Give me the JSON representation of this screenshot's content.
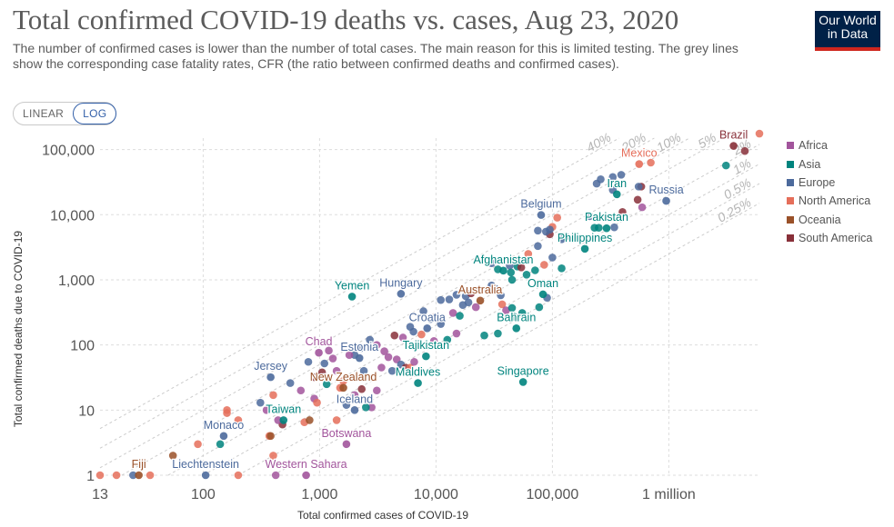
{
  "header": {
    "title": "Total confirmed COVID-19 deaths vs. cases, Aug 23, 2020",
    "subtitle": "The number of confirmed cases is lower than the number of total cases. The main reason for this is limited testing. The grey lines show the corresponding case fatality rates, CFR (the ratio between confirmed deaths and confirmed cases).",
    "logo_line1": "Our World",
    "logo_line2": "in Data"
  },
  "scale_toggle": {
    "linear_label": "LINEAR",
    "log_label": "LOG",
    "selected": "LOG"
  },
  "colors": {
    "Africa": "#a2559c",
    "Asia": "#00847e",
    "Europe": "#4c6a9c",
    "North America": "#e56e5a",
    "Oceania": "#9a5129",
    "South America": "#883039"
  },
  "legend": [
    "Africa",
    "Asia",
    "Europe",
    "North America",
    "Oceania",
    "South America"
  ],
  "chart_data": {
    "type": "scatter",
    "title": "Total confirmed COVID-19 deaths vs. cases, Aug 23, 2020",
    "xlabel": "Total confirmed cases of COVID-19",
    "ylabel": "Total confirmed deaths due to COVID-19",
    "xscale": "log",
    "yscale": "log",
    "xlim": [
      13,
      6000000
    ],
    "ylim": [
      1,
      150000
    ],
    "x_ticks": [
      {
        "value": 13,
        "label": "13"
      },
      {
        "value": 100,
        "label": "100"
      },
      {
        "value": 1000,
        "label": "1,000"
      },
      {
        "value": 10000,
        "label": "10,000"
      },
      {
        "value": 100000,
        "label": "100,000"
      },
      {
        "value": 1000000,
        "label": "1 million"
      }
    ],
    "y_ticks": [
      {
        "value": 1,
        "label": "1"
      },
      {
        "value": 10,
        "label": "10"
      },
      {
        "value": 100,
        "label": "100"
      },
      {
        "value": 1000,
        "label": "1,000"
      },
      {
        "value": 10000,
        "label": "10,000"
      },
      {
        "value": 100000,
        "label": "100,000"
      }
    ],
    "cfr_lines": [
      {
        "rate": 0.4,
        "label": "40%"
      },
      {
        "rate": 0.2,
        "label": "20%"
      },
      {
        "rate": 0.1,
        "label": "10%"
      },
      {
        "rate": 0.05,
        "label": "5%"
      },
      {
        "rate": 0.02,
        "label": "2%"
      },
      {
        "rate": 0.01,
        "label": "1%"
      },
      {
        "rate": 0.005,
        "label": "0.5%"
      },
      {
        "rate": 0.0025,
        "label": "0.25%"
      }
    ],
    "legend_position": "right",
    "labeled_points": [
      {
        "name": "Brazil",
        "x": 3600000,
        "y": 114000,
        "region": "South America"
      },
      {
        "name": "Mexico",
        "x": 556000,
        "y": 60000,
        "region": "North America"
      },
      {
        "name": "Iran",
        "x": 358000,
        "y": 20600,
        "region": "Asia"
      },
      {
        "name": "Russia",
        "x": 950000,
        "y": 16300,
        "region": "Europe"
      },
      {
        "name": "Belgium",
        "x": 80000,
        "y": 9900,
        "region": "Europe"
      },
      {
        "name": "Pakistan",
        "x": 292000,
        "y": 6200,
        "region": "Asia"
      },
      {
        "name": "Philippines",
        "x": 190000,
        "y": 3000,
        "region": "Asia"
      },
      {
        "name": "Afghanistan",
        "x": 37900,
        "y": 1385,
        "region": "Asia"
      },
      {
        "name": "Yemen",
        "x": 1900,
        "y": 552,
        "region": "Asia"
      },
      {
        "name": "Hungary",
        "x": 5000,
        "y": 610,
        "region": "Europe"
      },
      {
        "name": "Australia",
        "x": 24000,
        "y": 480,
        "region": "Oceania"
      },
      {
        "name": "Oman",
        "x": 83000,
        "y": 600,
        "region": "Asia"
      },
      {
        "name": "Croatia",
        "x": 8400,
        "y": 180,
        "region": "Europe"
      },
      {
        "name": "Bahrain",
        "x": 49000,
        "y": 180,
        "region": "Asia"
      },
      {
        "name": "Chad",
        "x": 985,
        "y": 76,
        "region": "Africa"
      },
      {
        "name": "Estonia",
        "x": 2200,
        "y": 63,
        "region": "Europe"
      },
      {
        "name": "Tajikistan",
        "x": 8200,
        "y": 67,
        "region": "Asia"
      },
      {
        "name": "Jersey",
        "x": 380,
        "y": 32,
        "region": "Europe"
      },
      {
        "name": "New Zealand",
        "x": 1600,
        "y": 22,
        "region": "Oceania"
      },
      {
        "name": "Maldives",
        "x": 7000,
        "y": 26,
        "region": "Asia"
      },
      {
        "name": "Singapore",
        "x": 56000,
        "y": 27,
        "region": "Asia"
      },
      {
        "name": "Iceland",
        "x": 2000,
        "y": 10,
        "region": "Europe"
      },
      {
        "name": "Taiwan",
        "x": 490,
        "y": 7,
        "region": "Asia"
      },
      {
        "name": "Monaco",
        "x": 150,
        "y": 4,
        "region": "Europe"
      },
      {
        "name": "Botswana",
        "x": 1700,
        "y": 3,
        "region": "Africa"
      },
      {
        "name": "Liechtenstein",
        "x": 105,
        "y": 1,
        "region": "Europe"
      },
      {
        "name": "Western Sahara",
        "x": 766,
        "y": 1,
        "region": "Africa"
      },
      {
        "name": "Fiji",
        "x": 28,
        "y": 1,
        "region": "Oceania"
      }
    ],
    "points": [
      {
        "x": 6000000,
        "y": 176000,
        "region": "North America"
      },
      {
        "x": 4500000,
        "y": 95000,
        "region": "South America"
      },
      {
        "x": 3100000,
        "y": 57000,
        "region": "Asia"
      },
      {
        "x": 700000,
        "y": 63000,
        "region": "North America"
      },
      {
        "x": 580000,
        "y": 27000,
        "region": "South America"
      },
      {
        "x": 330000,
        "y": 38000,
        "region": "Europe"
      },
      {
        "x": 330000,
        "y": 24000,
        "region": "Europe"
      },
      {
        "x": 260000,
        "y": 35000,
        "region": "Europe"
      },
      {
        "x": 240000,
        "y": 30000,
        "region": "Europe"
      },
      {
        "x": 390000,
        "y": 41000,
        "region": "Europe"
      },
      {
        "x": 550000,
        "y": 27000,
        "region": "Europe"
      },
      {
        "x": 540000,
        "y": 17000,
        "region": "South America"
      },
      {
        "x": 590000,
        "y": 13000,
        "region": "Africa"
      },
      {
        "x": 400000,
        "y": 11000,
        "region": "South America"
      },
      {
        "x": 210000,
        "y": 9500,
        "region": "Europe"
      },
      {
        "x": 110000,
        "y": 9000,
        "region": "North America"
      },
      {
        "x": 100000,
        "y": 6500,
        "region": "North America"
      },
      {
        "x": 95000,
        "y": 5000,
        "region": "South America"
      },
      {
        "x": 75000,
        "y": 5700,
        "region": "Europe"
      },
      {
        "x": 88000,
        "y": 5500,
        "region": "Europe"
      },
      {
        "x": 95000,
        "y": 5900,
        "region": "Europe"
      },
      {
        "x": 230000,
        "y": 6300,
        "region": "Asia"
      },
      {
        "x": 250000,
        "y": 6300,
        "region": "Asia"
      },
      {
        "x": 120000,
        "y": 4200,
        "region": "Europe"
      },
      {
        "x": 340000,
        "y": 6400,
        "region": "Europe"
      },
      {
        "x": 130000,
        "y": 4600,
        "region": "Asia"
      },
      {
        "x": 75000,
        "y": 3300,
        "region": "Europe"
      },
      {
        "x": 62000,
        "y": 2500,
        "region": "North America"
      },
      {
        "x": 53000,
        "y": 2000,
        "region": "South America"
      },
      {
        "x": 50000,
        "y": 1600,
        "region": "Asia"
      },
      {
        "x": 85000,
        "y": 1700,
        "region": "North America"
      },
      {
        "x": 30000,
        "y": 1800,
        "region": "Europe"
      },
      {
        "x": 34000,
        "y": 1450,
        "region": "Asia"
      },
      {
        "x": 43000,
        "y": 1650,
        "region": "Europe"
      },
      {
        "x": 44000,
        "y": 1300,
        "region": "Asia"
      },
      {
        "x": 54000,
        "y": 1550,
        "region": "South America"
      },
      {
        "x": 60000,
        "y": 1200,
        "region": "Asia"
      },
      {
        "x": 120000,
        "y": 1500,
        "region": "Asia"
      },
      {
        "x": 71000,
        "y": 1400,
        "region": "Asia"
      },
      {
        "x": 100000,
        "y": 2200,
        "region": "Europe"
      },
      {
        "x": 45000,
        "y": 1000,
        "region": "Asia"
      },
      {
        "x": 30000,
        "y": 820,
        "region": "Europe"
      },
      {
        "x": 36000,
        "y": 580,
        "region": "Europe"
      },
      {
        "x": 28000,
        "y": 700,
        "region": "Africa"
      },
      {
        "x": 32000,
        "y": 740,
        "region": "Europe"
      },
      {
        "x": 11000,
        "y": 490,
        "region": "Europe"
      },
      {
        "x": 15000,
        "y": 590,
        "region": "Europe"
      },
      {
        "x": 13000,
        "y": 500,
        "region": "Europe"
      },
      {
        "x": 18000,
        "y": 560,
        "region": "Europe"
      },
      {
        "x": 19000,
        "y": 450,
        "region": "Europe"
      },
      {
        "x": 20000,
        "y": 620,
        "region": "South America"
      },
      {
        "x": 17000,
        "y": 410,
        "region": "Europe"
      },
      {
        "x": 22000,
        "y": 380,
        "region": "Africa"
      },
      {
        "x": 37000,
        "y": 420,
        "region": "North America"
      },
      {
        "x": 40000,
        "y": 340,
        "region": "Africa"
      },
      {
        "x": 45000,
        "y": 370,
        "region": "Asia"
      },
      {
        "x": 55000,
        "y": 310,
        "region": "Asia"
      },
      {
        "x": 90000,
        "y": 530,
        "region": "Europe"
      },
      {
        "x": 77000,
        "y": 380,
        "region": "Asia"
      },
      {
        "x": 14000,
        "y": 310,
        "region": "Africa"
      },
      {
        "x": 16000,
        "y": 280,
        "region": "Asia"
      },
      {
        "x": 7800,
        "y": 330,
        "region": "Europe"
      },
      {
        "x": 9000,
        "y": 250,
        "region": "Europe"
      },
      {
        "x": 9800,
        "y": 270,
        "region": "South America"
      },
      {
        "x": 6400,
        "y": 160,
        "region": "Europe"
      },
      {
        "x": 6000,
        "y": 190,
        "region": "Europe"
      },
      {
        "x": 5200,
        "y": 130,
        "region": "Africa"
      },
      {
        "x": 4400,
        "y": 140,
        "region": "South America"
      },
      {
        "x": 7500,
        "y": 145,
        "region": "North America"
      },
      {
        "x": 11000,
        "y": 210,
        "region": "Europe"
      },
      {
        "x": 12500,
        "y": 120,
        "region": "Asia"
      },
      {
        "x": 9600,
        "y": 115,
        "region": "Africa"
      },
      {
        "x": 15000,
        "y": 150,
        "region": "Africa"
      },
      {
        "x": 26000,
        "y": 140,
        "region": "Asia"
      },
      {
        "x": 34000,
        "y": 150,
        "region": "Asia"
      },
      {
        "x": 47000,
        "y": 270,
        "region": "Asia"
      },
      {
        "x": 3100,
        "y": 100,
        "region": "Africa"
      },
      {
        "x": 2700,
        "y": 120,
        "region": "Europe"
      },
      {
        "x": 2300,
        "y": 90,
        "region": "Europe"
      },
      {
        "x": 3600,
        "y": 80,
        "region": "Africa"
      },
      {
        "x": 3900,
        "y": 65,
        "region": "Africa"
      },
      {
        "x": 4600,
        "y": 60,
        "region": "Africa"
      },
      {
        "x": 5000,
        "y": 50,
        "region": "Europe"
      },
      {
        "x": 5500,
        "y": 45,
        "region": "South America"
      },
      {
        "x": 6000,
        "y": 45,
        "region": "North America"
      },
      {
        "x": 6500,
        "y": 55,
        "region": "Africa"
      },
      {
        "x": 4200,
        "y": 40,
        "region": "Europe"
      },
      {
        "x": 3400,
        "y": 45,
        "region": "Africa"
      },
      {
        "x": 2000,
        "y": 70,
        "region": "Europe"
      },
      {
        "x": 1800,
        "y": 70,
        "region": "Africa"
      },
      {
        "x": 1300,
        "y": 62,
        "region": "Africa"
      },
      {
        "x": 1200,
        "y": 82,
        "region": "Africa"
      },
      {
        "x": 1100,
        "y": 52,
        "region": "Europe"
      },
      {
        "x": 800,
        "y": 55,
        "region": "Europe"
      },
      {
        "x": 2400,
        "y": 40,
        "region": "Europe"
      },
      {
        "x": 2100,
        "y": 32,
        "region": "North America"
      },
      {
        "x": 1600,
        "y": 28,
        "region": "North America"
      },
      {
        "x": 1400,
        "y": 40,
        "region": "Africa"
      },
      {
        "x": 1050,
        "y": 38,
        "region": "South America"
      },
      {
        "x": 900,
        "y": 32,
        "region": "South America"
      },
      {
        "x": 1500,
        "y": 22,
        "region": "North America"
      },
      {
        "x": 1150,
        "y": 25,
        "region": "Asia"
      },
      {
        "x": 900,
        "y": 15,
        "region": "Africa"
      },
      {
        "x": 950,
        "y": 13,
        "region": "North America"
      },
      {
        "x": 2000,
        "y": 17,
        "region": "Africa"
      },
      {
        "x": 2300,
        "y": 21,
        "region": "South America"
      },
      {
        "x": 3100,
        "y": 20,
        "region": "Africa"
      },
      {
        "x": 2800,
        "y": 11,
        "region": "Africa"
      },
      {
        "x": 2500,
        "y": 11,
        "region": "Asia"
      },
      {
        "x": 1700,
        "y": 12,
        "region": "Europe"
      },
      {
        "x": 1400,
        "y": 7,
        "region": "North America"
      },
      {
        "x": 690,
        "y": 20,
        "region": "Africa"
      },
      {
        "x": 560,
        "y": 26,
        "region": "Europe"
      },
      {
        "x": 400,
        "y": 17,
        "region": "North America"
      },
      {
        "x": 310,
        "y": 13,
        "region": "Europe"
      },
      {
        "x": 200,
        "y": 7,
        "region": "North America"
      },
      {
        "x": 480,
        "y": 6,
        "region": "South America"
      },
      {
        "x": 440,
        "y": 7,
        "region": "Africa"
      },
      {
        "x": 740,
        "y": 6.5,
        "region": "North America"
      },
      {
        "x": 820,
        "y": 7,
        "region": "Oceania"
      },
      {
        "x": 350,
        "y": 10,
        "region": "Africa"
      },
      {
        "x": 160,
        "y": 10,
        "region": "North America"
      },
      {
        "x": 160,
        "y": 9,
        "region": "North America"
      },
      {
        "x": 370,
        "y": 4,
        "region": "North America"
      },
      {
        "x": 380,
        "y": 4,
        "region": "Oceania"
      },
      {
        "x": 140,
        "y": 3,
        "region": "Asia"
      },
      {
        "x": 90,
        "y": 3,
        "region": "North America"
      },
      {
        "x": 55,
        "y": 2,
        "region": "Oceania"
      },
      {
        "x": 400,
        "y": 2,
        "region": "North America"
      },
      {
        "x": 13,
        "y": 1,
        "region": "North America"
      },
      {
        "x": 18,
        "y": 1,
        "region": "North America"
      },
      {
        "x": 25,
        "y": 1,
        "region": "Europe"
      },
      {
        "x": 35,
        "y": 1,
        "region": "North America"
      },
      {
        "x": 200,
        "y": 1,
        "region": "North America"
      },
      {
        "x": 420,
        "y": 1,
        "region": "Africa"
      }
    ]
  }
}
